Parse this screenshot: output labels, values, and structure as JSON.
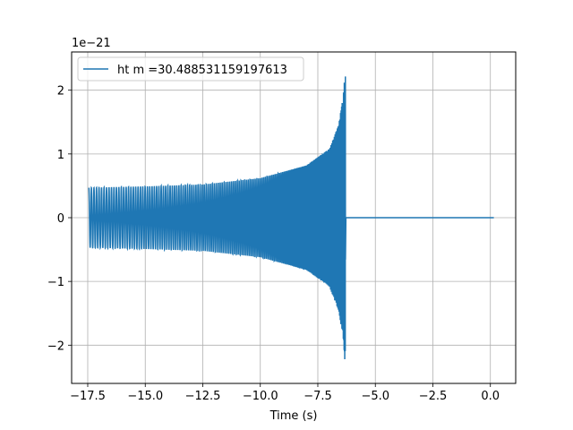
{
  "chart_data": {
    "type": "line",
    "xlabel": "Time (s)",
    "ylabel": "",
    "offset_text": "1e−21",
    "xlim": [
      -18.2,
      1.1
    ],
    "ylim": [
      -2.6,
      2.6
    ],
    "grid": true,
    "legend_placement": "top-left",
    "x_ticks": [
      -17.5,
      -15.0,
      -12.5,
      -10.0,
      -7.5,
      -5.0,
      -2.5,
      0.0
    ],
    "x_tick_labels": [
      "−17.5",
      "−15.0",
      "−12.5",
      "−10.0",
      "−7.5",
      "−5.0",
      "−2.5",
      "0.0"
    ],
    "y_ticks": [
      -2,
      -1,
      0,
      1,
      2
    ],
    "y_tick_labels": [
      "−2",
      "−1",
      "0",
      "1",
      "2"
    ],
    "series": [
      {
        "name": "ht m =30.488531159197613",
        "color": "#1f77b4",
        "description_points": {
          "start_time": -17.45,
          "merger_time": -6.3,
          "end_time": 0.15,
          "start_amplitude": 0.47,
          "peak_amplitude": 2.36,
          "min_amplitude": -2.36,
          "envelope": [
            [
              -17.45,
              0.47
            ],
            [
              -15.0,
              0.49
            ],
            [
              -12.5,
              0.52
            ],
            [
              -10.0,
              0.62
            ],
            [
              -8.0,
              0.82
            ],
            [
              -7.0,
              1.08
            ],
            [
              -6.6,
              1.45
            ],
            [
              -6.4,
              1.9
            ],
            [
              -6.3,
              2.36
            ]
          ]
        }
      }
    ]
  }
}
